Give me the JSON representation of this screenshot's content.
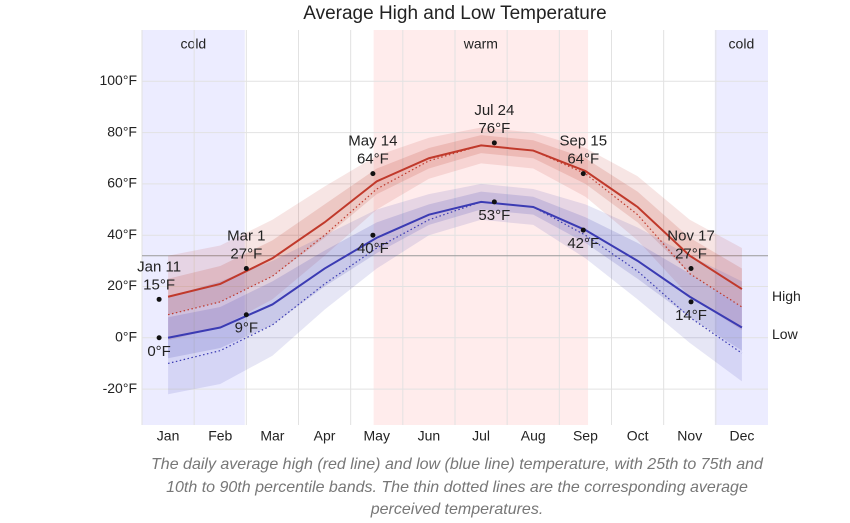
{
  "chart_data": {
    "type": "line",
    "title": "Average High and Low Temperature",
    "categories": [
      "Jan",
      "Feb",
      "Mar",
      "Apr",
      "May",
      "Jun",
      "Jul",
      "Aug",
      "Sep",
      "Oct",
      "Nov",
      "Dec"
    ],
    "ylim": [
      -34,
      120
    ],
    "yticks": [
      {
        "value": -20,
        "label": "-20°F"
      },
      {
        "value": 0,
        "label": "0°F"
      },
      {
        "value": 20,
        "label": "20°F"
      },
      {
        "value": 40,
        "label": "40°F"
      },
      {
        "value": 60,
        "label": "60°F"
      },
      {
        "value": 80,
        "label": "80°F"
      },
      {
        "value": 100,
        "label": "100°F"
      }
    ],
    "grid": true,
    "freezing": 32,
    "series": [
      {
        "name": "High",
        "color": "#c0392b",
        "values": [
          16,
          21,
          31,
          45,
          61,
          70,
          75,
          73,
          65,
          51,
          32,
          19
        ],
        "perceived": [
          9,
          14,
          24,
          40,
          58,
          69,
          75,
          73,
          64,
          48,
          25,
          12
        ],
        "p25": [
          9,
          14,
          24,
          39,
          56,
          66,
          72,
          70,
          60,
          45,
          25,
          12
        ],
        "p75": [
          23,
          28,
          38,
          52,
          66,
          74,
          79,
          77,
          70,
          57,
          39,
          27
        ],
        "p10": [
          -1,
          4,
          15,
          32,
          50,
          62,
          68,
          66,
          55,
          38,
          16,
          3
        ],
        "p90": [
          32,
          36,
          46,
          59,
          71,
          78,
          82,
          80,
          74,
          63,
          46,
          35
        ]
      },
      {
        "name": "Low",
        "color": "#3b3bb3",
        "values": [
          0,
          4,
          13,
          27,
          39,
          48,
          53,
          51,
          42,
          30,
          16,
          4
        ],
        "perceived": [
          -10,
          -5,
          5,
          21,
          35,
          46,
          53,
          51,
          40,
          26,
          8,
          -6
        ],
        "p25": [
          -8,
          -4,
          5,
          20,
          33,
          44,
          50,
          48,
          37,
          23,
          8,
          -5
        ],
        "p75": [
          8,
          12,
          22,
          34,
          45,
          52,
          57,
          55,
          47,
          37,
          25,
          12
        ],
        "p10": [
          -22,
          -18,
          -7,
          11,
          27,
          40,
          46,
          44,
          31,
          15,
          -2,
          -17
        ],
        "p90": [
          16,
          22,
          30,
          40,
          50,
          56,
          60,
          58,
          52,
          43,
          32,
          22
        ]
      }
    ],
    "seasons": [
      {
        "label": "cold",
        "start": 0,
        "end": 1.97,
        "color": "#ececff"
      },
      {
        "label": "warm",
        "start": 4.44,
        "end": 8.55,
        "color": "#ffecec"
      },
      {
        "label": "cold",
        "start": 10.98,
        "end": 12,
        "color": "#ececff"
      }
    ],
    "annotations": [
      {
        "date": "Jan 11",
        "values": [
          15,
          0
        ],
        "value_labels": [
          "15°F",
          "0°F"
        ]
      },
      {
        "date": "Mar 1",
        "values": [
          27,
          9
        ],
        "value_labels": [
          "27°F",
          "9°F"
        ]
      },
      {
        "date": "May 14",
        "values": [
          64,
          40
        ],
        "value_labels": [
          "64°F",
          "40°F"
        ]
      },
      {
        "date": "Jul 24",
        "values": [
          76,
          53
        ],
        "value_labels": [
          "76°F",
          "53°F"
        ]
      },
      {
        "date": "Sep 15",
        "values": [
          64,
          42
        ],
        "value_labels": [
          "64°F",
          "42°F"
        ]
      },
      {
        "date": "Nov 17",
        "values": [
          27,
          14
        ],
        "value_labels": [
          "27°F",
          "14°F"
        ]
      }
    ],
    "caption": [
      "The daily average high (red line) and low (blue line) temperature, with 25th to 75th and",
      "10th to 90th percentile bands. The thin dotted lines are the corresponding average",
      "perceived temperatures."
    ]
  }
}
